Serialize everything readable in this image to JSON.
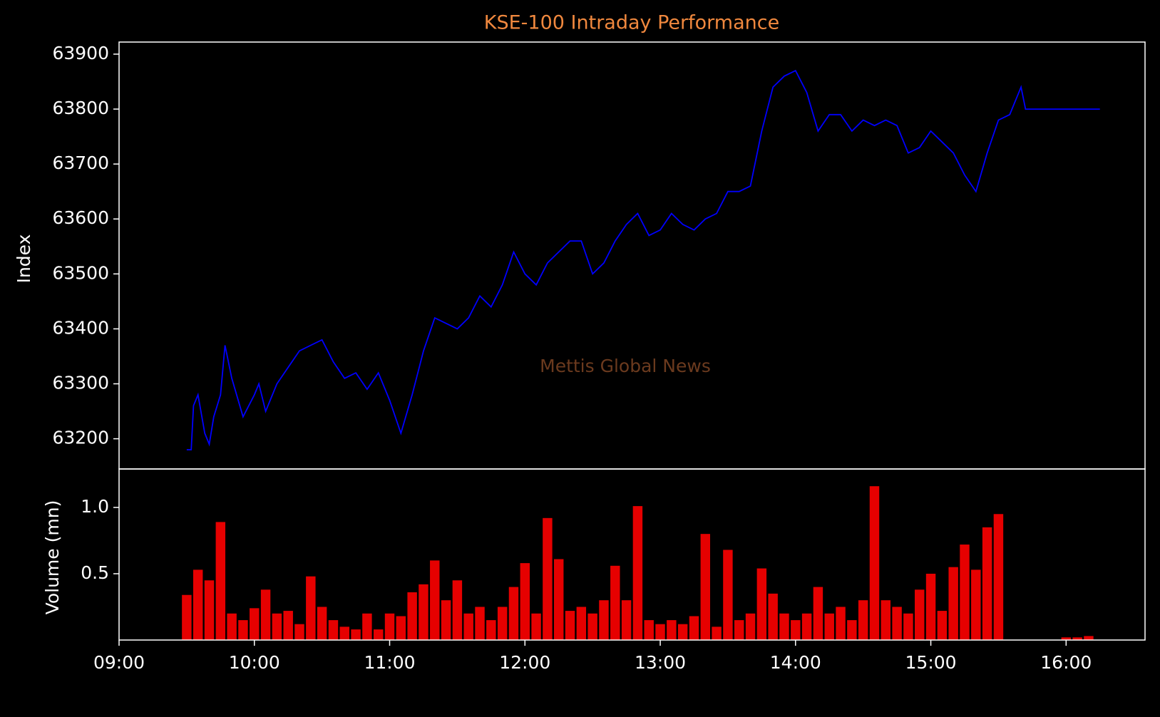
{
  "chart_data": [
    {
      "type": "line",
      "title": "KSE-100 Intraday Performance",
      "ylabel": "Index",
      "annotation": "Mettis Global News",
      "color": "#0000ff",
      "xlim": [
        "09:00",
        "16:35"
      ],
      "ylim": [
        63145,
        63922
      ],
      "yticks": [
        63200,
        63300,
        63400,
        63500,
        63600,
        63700,
        63800,
        63900
      ],
      "x": [
        "09:30",
        "09:32",
        "09:33",
        "09:35",
        "09:38",
        "09:40",
        "09:42",
        "09:45",
        "09:47",
        "09:50",
        "09:55",
        "10:00",
        "10:02",
        "10:05",
        "10:10",
        "10:15",
        "10:20",
        "10:25",
        "10:30",
        "10:35",
        "10:40",
        "10:45",
        "10:50",
        "10:55",
        "11:00",
        "11:05",
        "11:10",
        "11:15",
        "11:20",
        "11:25",
        "11:30",
        "11:35",
        "11:40",
        "11:45",
        "11:50",
        "11:55",
        "12:00",
        "12:05",
        "12:10",
        "12:15",
        "12:20",
        "12:25",
        "12:30",
        "12:35",
        "12:40",
        "12:45",
        "12:50",
        "12:55",
        "13:00",
        "13:05",
        "13:10",
        "13:15",
        "13:20",
        "13:25",
        "13:30",
        "13:35",
        "13:40",
        "13:45",
        "13:50",
        "13:55",
        "14:00",
        "14:05",
        "14:10",
        "14:15",
        "14:20",
        "14:25",
        "14:30",
        "14:35",
        "14:40",
        "14:45",
        "14:50",
        "14:55",
        "15:00",
        "15:05",
        "15:10",
        "15:15",
        "15:20",
        "15:25",
        "15:30",
        "15:35",
        "15:40",
        "15:42",
        "16:15"
      ],
      "values": [
        63180,
        63180,
        63260,
        63280,
        63210,
        63190,
        63240,
        63280,
        63370,
        63310,
        63240,
        63280,
        63300,
        63250,
        63300,
        63330,
        63360,
        63370,
        63380,
        63340,
        63310,
        63320,
        63290,
        63320,
        63270,
        63210,
        63280,
        63360,
        63420,
        63410,
        63400,
        63420,
        63460,
        63440,
        63480,
        63540,
        63500,
        63480,
        63520,
        63540,
        63560,
        63560,
        63500,
        63520,
        63560,
        63590,
        63610,
        63570,
        63580,
        63610,
        63590,
        63580,
        63600,
        63610,
        63650,
        63650,
        63660,
        63760,
        63840,
        63860,
        63870,
        63830,
        63760,
        63790,
        63790,
        63760,
        63780,
        63770,
        63780,
        63770,
        63720,
        63730,
        63760,
        63740,
        63720,
        63680,
        63650,
        63720,
        63780,
        63790,
        63840,
        63800,
        63800
      ]
    },
    {
      "type": "bar",
      "ylabel": "Volume (mn)",
      "color": "#e60000",
      "xlim": [
        "09:00",
        "16:35"
      ],
      "xticks": [
        "09:00",
        "10:00",
        "11:00",
        "12:00",
        "13:00",
        "14:00",
        "15:00",
        "16:00"
      ],
      "ylim": [
        0,
        1.29
      ],
      "yticks": [
        0.5,
        {
          "value": 1,
          "label": "1.0"
        }
      ],
      "x": [
        "09:30",
        "09:35",
        "09:40",
        "09:45",
        "09:50",
        "09:55",
        "10:00",
        "10:05",
        "10:10",
        "10:15",
        "10:20",
        "10:25",
        "10:30",
        "10:35",
        "10:40",
        "10:45",
        "10:50",
        "10:55",
        "11:00",
        "11:05",
        "11:10",
        "11:15",
        "11:20",
        "11:25",
        "11:30",
        "11:35",
        "11:40",
        "11:45",
        "11:50",
        "11:55",
        "12:00",
        "12:05",
        "12:10",
        "12:15",
        "12:20",
        "12:25",
        "12:30",
        "12:35",
        "12:40",
        "12:45",
        "12:50",
        "12:55",
        "13:00",
        "13:05",
        "13:10",
        "13:15",
        "13:20",
        "13:25",
        "13:30",
        "13:35",
        "13:40",
        "13:45",
        "13:50",
        "13:55",
        "14:00",
        "14:05",
        "14:10",
        "14:15",
        "14:20",
        "14:25",
        "14:30",
        "14:35",
        "14:40",
        "14:45",
        "14:50",
        "14:55",
        "15:00",
        "15:05",
        "15:10",
        "15:15",
        "15:20",
        "15:25",
        "15:30",
        "16:00",
        "16:05",
        "16:10"
      ],
      "values": [
        0.34,
        0.53,
        0.45,
        0.89,
        0.2,
        0.15,
        0.24,
        0.38,
        0.2,
        0.22,
        0.12,
        0.48,
        0.25,
        0.15,
        0.1,
        0.08,
        0.2,
        0.08,
        0.2,
        0.18,
        0.36,
        0.42,
        0.6,
        0.3,
        0.45,
        0.2,
        0.25,
        0.15,
        0.25,
        0.4,
        0.58,
        0.2,
        0.92,
        0.61,
        0.22,
        0.25,
        0.2,
        0.3,
        0.56,
        0.3,
        1.01,
        0.15,
        0.12,
        0.15,
        0.12,
        0.18,
        0.8,
        0.1,
        0.68,
        0.15,
        0.2,
        0.54,
        0.35,
        0.2,
        0.15,
        0.2,
        0.4,
        0.2,
        0.25,
        0.15,
        0.3,
        1.16,
        0.3,
        0.25,
        0.2,
        0.38,
        0.5,
        0.22,
        0.55,
        0.72,
        0.53,
        0.85,
        0.95,
        0.02,
        0.02,
        0.03
      ]
    }
  ]
}
